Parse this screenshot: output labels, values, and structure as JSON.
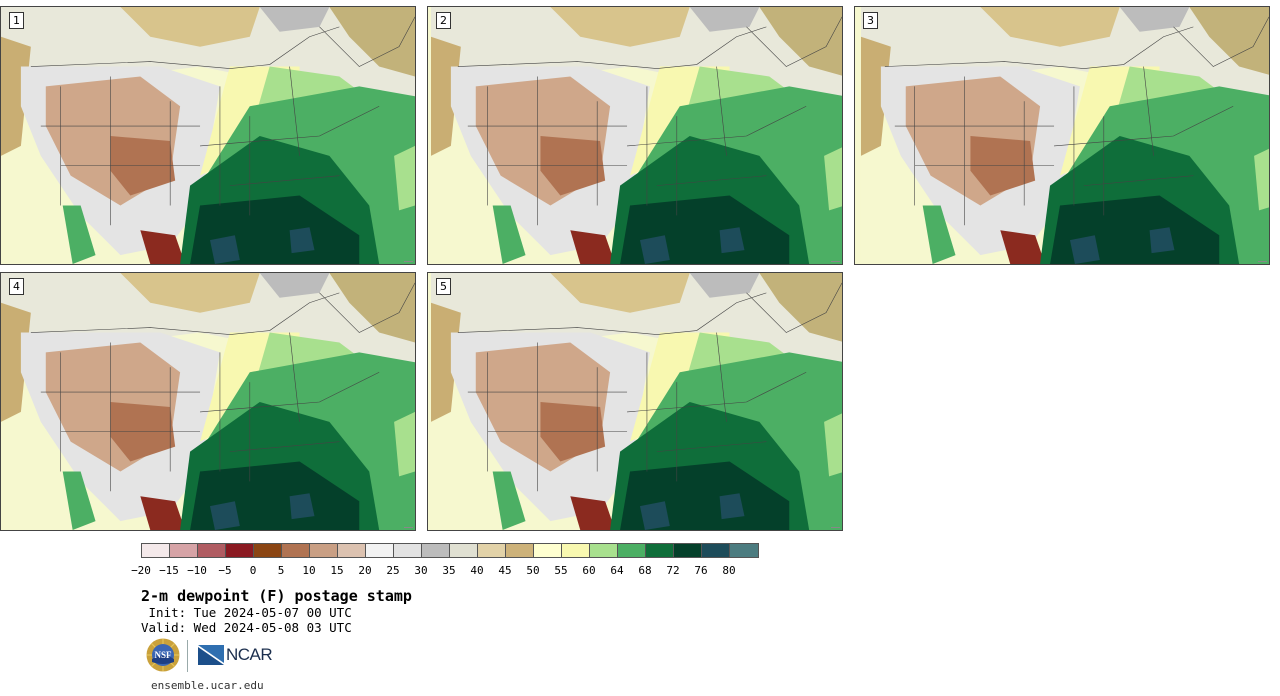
{
  "panels": [
    {
      "label": "1"
    },
    {
      "label": "2"
    },
    {
      "label": "3"
    },
    {
      "label": "4"
    },
    {
      "label": "5"
    }
  ],
  "colorbar": {
    "colors": [
      "#f4e9ea",
      "#d6a3a6",
      "#b05c62",
      "#8b1a22",
      "#8b4513",
      "#b07352",
      "#c99f84",
      "#dcc2b0",
      "#f2f2f2",
      "#e2e2e2",
      "#bcbcbc",
      "#e0e0d2",
      "#e2d2a8",
      "#cdb27a",
      "#ffffd0",
      "#f8f8b0",
      "#a8e08e",
      "#4caf64",
      "#0f6e3a",
      "#04402a",
      "#1d4c5a",
      "#4c7c80"
    ],
    "ticks": [
      "−20",
      "−15",
      "−10",
      "−5",
      "0",
      "5",
      "10",
      "15",
      "20",
      "25",
      "30",
      "35",
      "40",
      "45",
      "50",
      "55",
      "60",
      "64",
      "68",
      "72",
      "76",
      "80"
    ]
  },
  "title": "2-m dewpoint (F) postage stamp",
  "init": " Init: Tue 2024-05-07 00 UTC",
  "valid": "Valid: Wed 2024-05-08 03 UTC",
  "logos": {
    "nsf": "NSF",
    "ncar": "NCAR"
  },
  "site": "ensemble.ucar.edu"
}
